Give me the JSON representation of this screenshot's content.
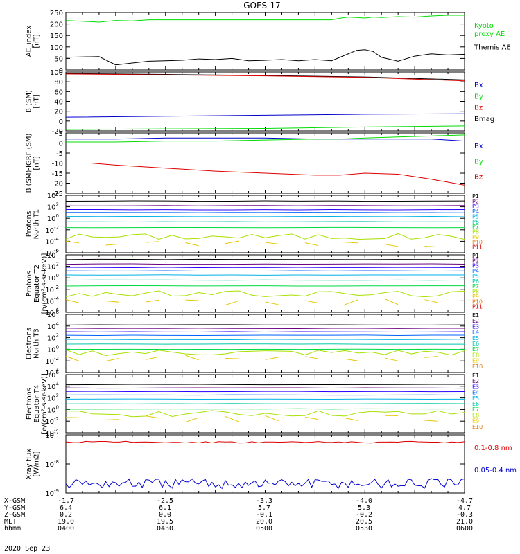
{
  "title": "GOES-17",
  "date_label": "2020 Sep 23",
  "colors": {
    "black": "#000000",
    "green": "#00dd00",
    "red": "#dd0000",
    "blue": "#0000cc",
    "channels": [
      "#000000",
      "#6a0080",
      "#2a00ff",
      "#0060ff",
      "#00b0e8",
      "#00c8a8",
      "#00d840",
      "#a8e000",
      "#e8c800",
      "#e87800",
      "#e00000",
      "#b00000"
    ]
  },
  "ephemeris": {
    "row_labels": [
      "X-GSM",
      "Y-GSM",
      "Z-GSM",
      "MLT",
      "hhmm"
    ],
    "columns": [
      {
        "X-GSM": "-1.7",
        "Y-GSM": "6.4",
        "Z-GSM": "0.2",
        "MLT": "19.0",
        "hhmm": "0400"
      },
      {
        "X-GSM": "-2.5",
        "Y-GSM": "6.1",
        "Z-GSM": "0.0",
        "MLT": "19.5",
        "hhmm": "0430"
      },
      {
        "X-GSM": "-3.3",
        "Y-GSM": "5.7",
        "Z-GSM": "-0.1",
        "MLT": "20.0",
        "hhmm": "0500"
      },
      {
        "X-GSM": "-4.0",
        "Y-GSM": "5.3",
        "Z-GSM": "-0.2",
        "MLT": "20.5",
        "hhmm": "0530"
      },
      {
        "X-GSM": "-4.7",
        "Y-GSM": "4.7",
        "Z-GSM": "-0.3",
        "MLT": "21.0",
        "hhmm": "0600"
      }
    ]
  },
  "chart_data": [
    {
      "type": "line",
      "ylabel": "AE_index\n[nT]",
      "ylim": [
        0,
        250
      ],
      "yticks": [
        "0",
        "50",
        "100",
        "150",
        "200",
        "250"
      ],
      "ytick_values": [
        0,
        50,
        100,
        150,
        200,
        250
      ],
      "x_minutes": [
        0,
        20,
        30,
        40,
        50,
        60,
        70,
        80,
        90,
        100,
        110,
        120,
        130,
        140,
        150,
        160,
        165,
        170,
        175,
        180,
        185,
        190,
        200,
        210,
        220,
        230,
        240
      ],
      "legend": [
        {
          "label": "Kyoto\nproxy AE",
          "color": "#00dd00"
        },
        {
          "label": "Themis AE",
          "color": "#000000"
        }
      ],
      "series": [
        {
          "name": "Kyoto proxy AE",
          "color": "#00dd00",
          "values": [
            215,
            208,
            215,
            213,
            218,
            218,
            218,
            218,
            218,
            218,
            218,
            218,
            218,
            218,
            218,
            218,
            225,
            230,
            228,
            226,
            230,
            228,
            232,
            230,
            235,
            238,
            238
          ]
        },
        {
          "name": "Themis AE",
          "color": "#000000",
          "values": [
            55,
            58,
            22,
            30,
            38,
            40,
            42,
            48,
            45,
            50,
            40,
            42,
            45,
            40,
            45,
            40,
            55,
            70,
            85,
            88,
            80,
            55,
            38,
            60,
            70,
            65,
            68
          ]
        }
      ]
    },
    {
      "type": "line",
      "ylabel": "B (SM)\n[nT]",
      "ylim": [
        -20,
        100
      ],
      "yticks": [
        "-20",
        "0",
        "20",
        "40",
        "60",
        "80",
        "100"
      ],
      "ytick_values": [
        -20,
        0,
        20,
        40,
        60,
        80,
        100
      ],
      "x_minutes": [
        0,
        60,
        120,
        180,
        240
      ],
      "legend": [
        {
          "label": "Bx",
          "color": "#0000cc"
        },
        {
          "label": "By",
          "color": "#00dd00"
        },
        {
          "label": "Bz",
          "color": "#dd0000"
        },
        {
          "label": "Bmag",
          "color": "#000000"
        }
      ],
      "series": [
        {
          "name": "Bmag",
          "color": "#000000",
          "values": [
            97,
            95,
            93,
            90,
            84
          ]
        },
        {
          "name": "Bz",
          "color": "#dd0000",
          "values": [
            96,
            94,
            92,
            89,
            82
          ]
        },
        {
          "name": "Bx",
          "color": "#0000cc",
          "values": [
            8,
            10,
            12,
            14,
            15
          ]
        },
        {
          "name": "By",
          "color": "#00dd00",
          "values": [
            -17,
            -16,
            -15,
            -12,
            -10
          ]
        }
      ]
    },
    {
      "type": "line",
      "ylabel": "B (SM)-IGRF (SM)\n[nT]",
      "ylim": [
        -25,
        5
      ],
      "yticks": [
        "-25",
        "-20",
        "-15",
        "-10",
        "-5",
        "0",
        "5"
      ],
      "ytick_values": [
        -25,
        -20,
        -15,
        -10,
        -5,
        0,
        5
      ],
      "x_minutes": [
        0,
        15,
        30,
        60,
        90,
        120,
        150,
        165,
        180,
        200,
        220,
        240
      ],
      "legend": [
        {
          "label": "Bx",
          "color": "#0000cc"
        },
        {
          "label": "By",
          "color": "#00dd00"
        },
        {
          "label": "Bz",
          "color": "#dd0000"
        }
      ],
      "series": [
        {
          "name": "Bx",
          "color": "#0000cc",
          "values": [
            2,
            2,
            2,
            2.5,
            2.5,
            2.5,
            2,
            2,
            2,
            2,
            2,
            1
          ]
        },
        {
          "name": "By",
          "color": "#00dd00",
          "values": [
            0.5,
            0.5,
            0.5,
            1,
            1,
            1.5,
            2,
            2,
            2.5,
            3,
            3.5,
            4
          ]
        },
        {
          "name": "Bz",
          "color": "#dd0000",
          "values": [
            -10,
            -10,
            -11,
            -12.5,
            -14,
            -15,
            -16,
            -16,
            -15,
            -15.5,
            -18,
            -21
          ]
        }
      ]
    },
    {
      "type": "line",
      "ylabel": "Protons\nNorth T1",
      "yscale": "log",
      "ylim": [
        -6,
        4
      ],
      "yticks": [
        "10⁶",
        "10⁴",
        "10²",
        "10⁰",
        "10⁻²",
        "10⁻⁴",
        "10⁻⁶"
      ],
      "ytick_values": [
        6,
        4,
        2,
        0,
        -2,
        -4,
        -6
      ],
      "ytick_exponents": [
        "4",
        "2",
        "0",
        "-2",
        "-4",
        "-6"
      ],
      "legend_small": [
        "P1",
        "P2",
        "P3",
        "P4",
        "P5",
        "P6",
        "P7",
        "P8",
        "P9",
        "P10",
        "P11"
      ],
      "log_levels": [
        3.0,
        2.2,
        1.5,
        1.0,
        0.3,
        -0.6,
        -1.6,
        -3.2,
        -4.5
      ],
      "ch_colors": [
        "#000000",
        "#6a0080",
        "#2a00ff",
        "#0060ff",
        "#00b0e8",
        "#00c8a8",
        "#00d840",
        "#a8e000",
        "#e8c800",
        "#e87800",
        "#e00000",
        "#b00000"
      ]
    },
    {
      "type": "line",
      "ylabel": "Protons\nEquator T2\n[p/(cm²-s-sr-keV)]",
      "yscale": "log",
      "ylim": [
        -6,
        4
      ],
      "ytick_exponents": [
        "4",
        "2",
        "0",
        "-2",
        "-4",
        "-6"
      ],
      "legend_small": [
        "P1",
        "P2",
        "P3",
        "P4",
        "P5",
        "P6",
        "P7",
        "P8",
        "P9",
        "P10",
        "P11"
      ],
      "log_levels": [
        3.2,
        2.4,
        1.8,
        1.2,
        0.5,
        -0.4,
        -1.4,
        -2.8,
        -4.2
      ],
      "ch_colors": [
        "#000000",
        "#6a0080",
        "#2a00ff",
        "#0060ff",
        "#00b0e8",
        "#00c8a8",
        "#00d840",
        "#a8e000",
        "#e8c800",
        "#e87800",
        "#e00000",
        "#b00000"
      ]
    },
    {
      "type": "line",
      "ylabel": "Electrons\nNorth T3",
      "yscale": "log",
      "ylim": [
        -4,
        6
      ],
      "ytick_exponents": [
        "6",
        "4",
        "2",
        "0",
        "-2",
        "-4"
      ],
      "legend_small": [
        "E1",
        "E2",
        "E3",
        "E4",
        "E5",
        "E6",
        "E7",
        "E8",
        "E9",
        "E10"
      ],
      "log_levels": [
        4.2,
        3.6,
        3.0,
        2.4,
        1.7,
        0.9,
        0.0,
        -0.6,
        -1.5
      ],
      "ch_colors": [
        "#000000",
        "#6a0080",
        "#2a00ff",
        "#0060ff",
        "#00b0e8",
        "#00c8a8",
        "#00d840",
        "#a8e000",
        "#e8c800",
        "#e87800",
        "#e00000",
        "#b00000"
      ]
    },
    {
      "type": "line",
      "ylabel": "Electrons\nEquator T4\n[e/(cm²-s-sr-keV)]",
      "yscale": "log",
      "ylim": [
        -4,
        6
      ],
      "ytick_exponents": [
        "6",
        "4",
        "2",
        "0",
        "-2",
        "-4"
      ],
      "legend_small": [
        "E1",
        "E2",
        "E3",
        "E4",
        "E5",
        "E6",
        "E7",
        "E8",
        "E9",
        "E10"
      ],
      "log_levels": [
        4.3,
        3.7,
        3.1,
        2.5,
        1.8,
        1.0,
        0.1,
        -0.7,
        -1.6
      ],
      "ch_colors": [
        "#000000",
        "#6a0080",
        "#2a00ff",
        "#0060ff",
        "#00b0e8",
        "#00c8a8",
        "#00d840",
        "#a8e000",
        "#e8c800",
        "#e87800",
        "#e00000",
        "#b00000"
      ]
    },
    {
      "type": "line",
      "ylabel": "Xray flux\n[W/m2]",
      "yscale": "log",
      "ylim": [
        -9,
        -7
      ],
      "ytick_exponents": [
        "-7",
        "-8",
        "-9"
      ],
      "legend": [
        {
          "label": "0.1-0.8 nm",
          "color": "#dd0000"
        },
        {
          "label": "0.05-0.4 nm",
          "color": "#0000cc"
        }
      ],
      "series": [
        {
          "name": "0.1-0.8 nm",
          "color": "#dd0000",
          "log_value": -7.25
        },
        {
          "name": "0.05-0.4 nm",
          "color": "#0000cc",
          "log_value": -8.68
        }
      ]
    }
  ]
}
